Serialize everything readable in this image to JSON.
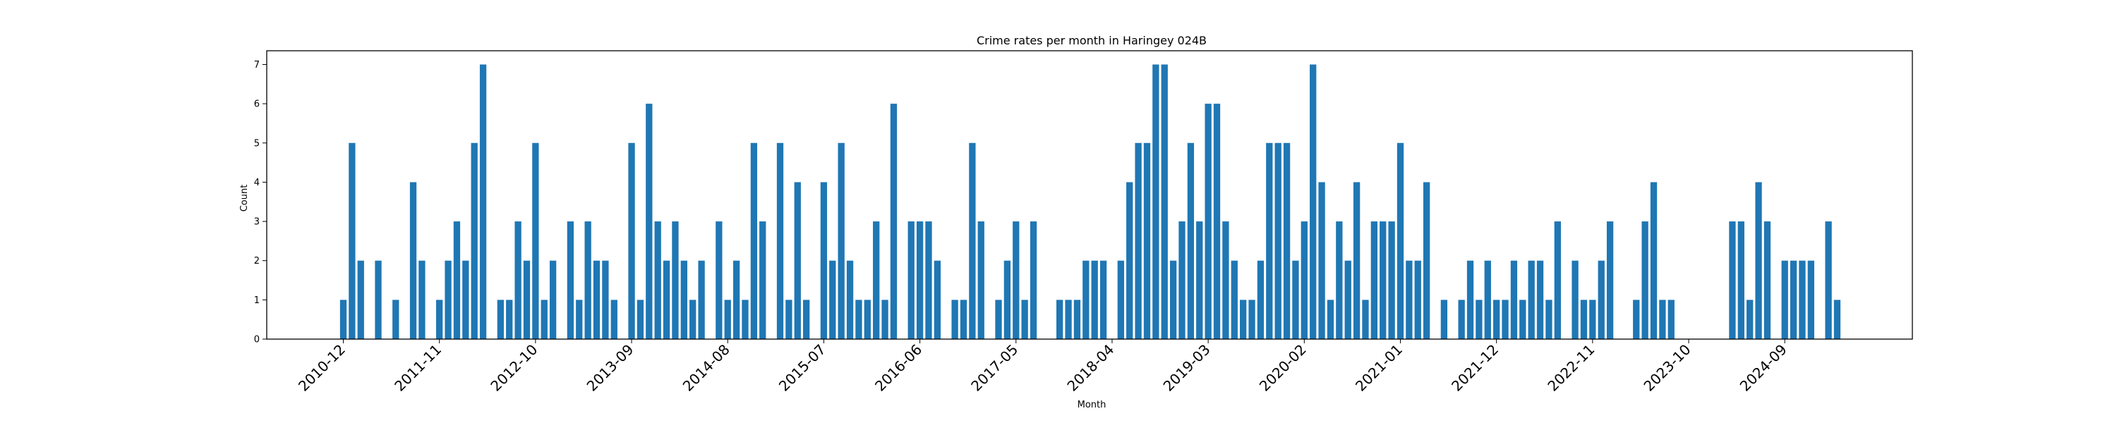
{
  "chart_data": {
    "type": "bar",
    "title": "Crime rates per month in Haringey 024B",
    "xlabel": "Month",
    "ylabel": "Count",
    "ylim": [
      0,
      7.35
    ],
    "yticks": [
      0,
      1,
      2,
      3,
      4,
      5,
      6,
      7
    ],
    "xtick_labels": [
      "2010-12",
      "2011-11",
      "2012-10",
      "2013-09",
      "2014-08",
      "2015-07",
      "2016-06",
      "2017-05",
      "2018-04",
      "2019-03",
      "2020-02",
      "2021-01",
      "2021-12",
      "2022-11",
      "2023-10",
      "2024-09"
    ],
    "bar_color": "#1f77b4",
    "grid": false,
    "start_month": "2010-12",
    "values": [
      1,
      5,
      2,
      0,
      2,
      0,
      1,
      0,
      4,
      2,
      0,
      1,
      2,
      3,
      2,
      5,
      7,
      0,
      1,
      1,
      3,
      2,
      5,
      1,
      2,
      0,
      3,
      1,
      3,
      2,
      2,
      1,
      0,
      5,
      1,
      6,
      3,
      2,
      3,
      2,
      1,
      2,
      0,
      3,
      1,
      2,
      1,
      5,
      3,
      0,
      5,
      1,
      4,
      1,
      0,
      4,
      2,
      5,
      2,
      1,
      1,
      3,
      1,
      6,
      0,
      3,
      3,
      3,
      2,
      0,
      1,
      1,
      5,
      3,
      0,
      1,
      2,
      3,
      1,
      3,
      0,
      0,
      1,
      1,
      1,
      2,
      2,
      2,
      0,
      2,
      4,
      5,
      5,
      7,
      7,
      2,
      3,
      5,
      3,
      6,
      6,
      3,
      2,
      1,
      1,
      2,
      5,
      5,
      5,
      2,
      3,
      7,
      4,
      1,
      3,
      2,
      4,
      1,
      3,
      3,
      3,
      5,
      2,
      2,
      4,
      0,
      1,
      0,
      1,
      2,
      1,
      2,
      1,
      1,
      2,
      1,
      2,
      2,
      1,
      3,
      0,
      2,
      1,
      1,
      2,
      3,
      0,
      0,
      1,
      3,
      4,
      1,
      1,
      0,
      0,
      0,
      0,
      0,
      0,
      3,
      3,
      1,
      4,
      3,
      0,
      2,
      2,
      2,
      2,
      0,
      3,
      1
    ]
  }
}
